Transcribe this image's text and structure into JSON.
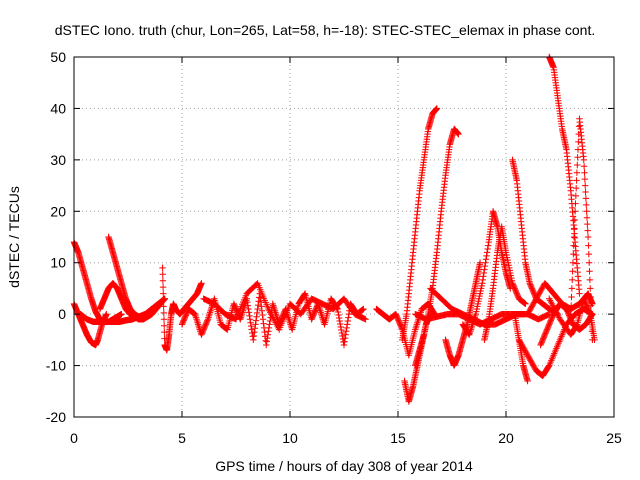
{
  "chart_data": {
    "type": "scatter",
    "title": "dSTEC Iono. truth (chur, Lon=265, Lat=58, h=-18): STEC-STEC_elemax in phase cont.",
    "xlabel": "GPS time / hours of day 308 of year 2014",
    "ylabel": "dSTEC  / TECUs",
    "xlim": [
      0,
      25
    ],
    "ylim": [
      -20,
      50
    ],
    "xticks": [
      0,
      5,
      10,
      15,
      20,
      25
    ],
    "yticks": [
      -20,
      -10,
      0,
      10,
      20,
      30,
      40,
      50
    ],
    "grid": true,
    "marker": "plus",
    "color": "#ff0000",
    "series": [
      {
        "x": [
          0.0,
          0.2,
          0.4,
          0.6,
          0.8,
          1.0,
          1.2,
          1.4,
          1.6,
          1.8,
          2.0,
          2.2
        ],
        "y": [
          14,
          12,
          9,
          6,
          3,
          0.5,
          -1,
          -1.5,
          -1.5,
          -1,
          -0.5,
          0
        ]
      },
      {
        "x": [
          0.0,
          0.2,
          0.4,
          0.6,
          0.8,
          1.0,
          1.1,
          1.3,
          1.5
        ],
        "y": [
          2,
          0,
          -2,
          -4,
          -5.5,
          -6,
          -5,
          -2,
          0
        ]
      },
      {
        "x": [
          1.6,
          1.8,
          2.0,
          2.2,
          2.4,
          2.6,
          2.8,
          3.0,
          3.2,
          3.4,
          3.6
        ],
        "y": [
          15,
          12,
          9,
          6,
          3,
          1,
          0,
          -0.5,
          -0.5,
          0,
          1
        ]
      },
      {
        "x": [
          0.3,
          0.6,
          0.9,
          1.2,
          1.5,
          1.8,
          2.1,
          2.4,
          2.7,
          3.0,
          3.3,
          3.6,
          3.9,
          4.2
        ],
        "y": [
          0,
          -1,
          -1.5,
          -1.5,
          -1.5,
          -1.5,
          -1.5,
          -1.2,
          -1,
          -0.5,
          0,
          1,
          2,
          3
        ]
      },
      {
        "x": [
          1.2,
          1.4,
          1.6,
          1.8,
          2.0,
          2.2,
          2.4,
          2.6,
          2.8,
          3.0,
          3.2,
          3.4,
          3.6,
          3.8,
          4.0,
          4.2
        ],
        "y": [
          1,
          3,
          5,
          6,
          5,
          3,
          1,
          0,
          -0.5,
          -1,
          -1,
          -0.5,
          0,
          1,
          2,
          3
        ]
      },
      {
        "x": [
          4.1,
          4.2,
          4.3,
          4.4,
          4.5,
          4.6,
          4.7,
          4.9,
          5.1,
          5.3,
          5.5,
          5.7,
          5.9
        ],
        "y": [
          9,
          -6,
          -7,
          -4,
          0,
          2,
          1,
          0,
          1,
          2,
          3,
          4,
          6
        ]
      },
      {
        "x": [
          5.0,
          5.3,
          5.6,
          5.9,
          6.2,
          6.5,
          6.8,
          7.1,
          7.4,
          7.7,
          8.0,
          8.3,
          8.6,
          8.9,
          9.2,
          9.5,
          9.8,
          10.1,
          10.4,
          10.7,
          11.0,
          11.3,
          11.6,
          11.9,
          12.2,
          12.5,
          12.8,
          13.1,
          13.4
        ],
        "y": [
          -2,
          1,
          0,
          -4,
          -1,
          3,
          -2,
          -3,
          2,
          -1,
          3,
          -5,
          4,
          -6,
          2,
          -2,
          1,
          -3,
          2,
          4,
          -1,
          2,
          -2,
          3,
          1,
          -6,
          2,
          0,
          1
        ]
      },
      {
        "x": [
          6.0,
          6.5,
          7.0,
          7.5,
          8.0,
          8.5,
          9.0,
          9.5,
          10.0,
          10.5,
          11.0,
          11.5,
          12.0,
          12.5,
          13.0,
          13.5
        ],
        "y": [
          3,
          2,
          0,
          -1,
          4,
          6,
          1,
          -3,
          2,
          0,
          3,
          2,
          1,
          3,
          0,
          -1
        ]
      },
      {
        "x": [
          14.0,
          14.3,
          14.6,
          14.9,
          15.2,
          15.5,
          15.8,
          16.1,
          16.4,
          16.7
        ],
        "y": [
          1,
          0,
          -1,
          0,
          -3,
          -8,
          -3,
          1,
          2,
          0
        ]
      },
      {
        "x": [
          15.3,
          15.5,
          15.7,
          15.9,
          16.1,
          16.3,
          16.5
        ],
        "y": [
          -13,
          -17,
          -14,
          -10,
          -6,
          -2,
          0
        ]
      },
      {
        "x": [
          15.2,
          15.4,
          15.6,
          15.8,
          16.0,
          16.2,
          16.4,
          16.6,
          16.8
        ],
        "y": [
          -5,
          0,
          8,
          16,
          24,
          30,
          36,
          39,
          40
        ]
      },
      {
        "x": [
          15.8,
          16.0,
          16.2,
          16.4,
          16.6,
          16.8,
          17.0,
          17.2,
          17.4,
          17.6,
          17.8
        ],
        "y": [
          -10,
          -7,
          -4,
          0,
          5,
          12,
          20,
          27,
          33,
          36,
          35
        ]
      },
      {
        "x": [
          15.8,
          16.3,
          16.8,
          17.3,
          17.8,
          18.3,
          18.8,
          19.3,
          19.8,
          20.3,
          20.8
        ],
        "y": [
          0,
          -1,
          -0.5,
          0,
          0,
          -1,
          -2,
          -1,
          0,
          0,
          0
        ]
      },
      {
        "x": [
          16.5,
          17.0,
          17.5,
          18.0,
          18.5,
          19.0,
          19.5,
          20.0,
          20.5,
          21.0,
          21.5,
          22.0
        ],
        "y": [
          5,
          3,
          1,
          0,
          -1,
          -2,
          -2,
          -1,
          0,
          0,
          -1,
          0
        ]
      },
      {
        "x": [
          17.2,
          17.4,
          17.6,
          17.8,
          18.0,
          18.2,
          18.4,
          18.6,
          18.8
        ],
        "y": [
          -5,
          -8,
          -10,
          -8,
          -5,
          -2,
          2,
          6,
          10
        ]
      },
      {
        "x": [
          18.0,
          18.3,
          18.6,
          18.9,
          19.2,
          19.4,
          19.6,
          19.8,
          20.0,
          20.2
        ],
        "y": [
          -2,
          -4,
          0,
          6,
          14,
          20,
          17,
          12,
          8,
          5
        ]
      },
      {
        "x": [
          19.0,
          19.2,
          19.4,
          19.6,
          19.8,
          20.0,
          20.3,
          20.6,
          20.9
        ],
        "y": [
          -5,
          -1,
          5,
          12,
          17,
          12,
          6,
          3,
          2
        ]
      },
      {
        "x": [
          20.3,
          20.5,
          20.7,
          20.9,
          21.1,
          21.4,
          21.7,
          22.0,
          22.4
        ],
        "y": [
          30,
          26,
          18,
          10,
          6,
          3,
          2,
          1,
          0
        ]
      },
      {
        "x": [
          20.4,
          20.6,
          20.8,
          21.0
        ],
        "y": [
          0,
          -5,
          -10,
          -13
        ]
      },
      {
        "x": [
          20.6,
          21.0,
          21.4,
          21.7,
          22.0,
          22.4,
          22.8,
          23.2,
          23.6,
          24.0
        ],
        "y": [
          -5,
          -8,
          -11,
          -12,
          -10,
          -6,
          -2,
          0,
          1,
          0
        ]
      },
      {
        "x": [
          22.0,
          22.2,
          22.4,
          22.6,
          22.8,
          23.0,
          23.2,
          23.4
        ],
        "y": [
          50,
          48,
          42,
          36,
          32,
          24,
          14,
          4
        ]
      },
      {
        "x": [
          21.6,
          21.9,
          22.2,
          22.5,
          22.8,
          23.1,
          23.4,
          23.7,
          24.0
        ],
        "y": [
          -6,
          -3,
          0,
          2,
          1,
          -2,
          -3,
          -2,
          0
        ]
      },
      {
        "x": [
          23.0,
          23.2,
          23.4,
          23.6,
          23.8,
          24.0
        ],
        "y": [
          0,
          20,
          38,
          30,
          15,
          -5
        ]
      },
      {
        "x": [
          21.0,
          21.4,
          21.8,
          22.2,
          22.6,
          23.0,
          23.4,
          23.8,
          24.0
        ],
        "y": [
          0,
          3,
          6,
          4,
          2,
          1,
          2,
          4,
          2
        ]
      },
      {
        "x": [
          22.0,
          22.5,
          23.0,
          23.3,
          23.6,
          23.9,
          24.1
        ],
        "y": [
          3,
          -1,
          -4,
          -2,
          3,
          0,
          -5
        ]
      }
    ]
  }
}
